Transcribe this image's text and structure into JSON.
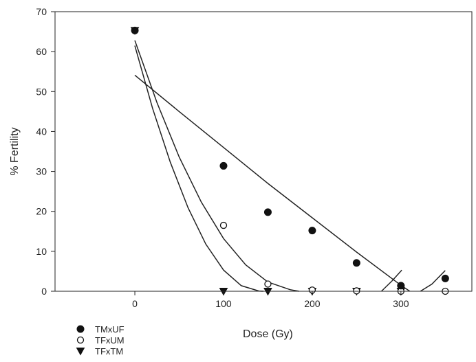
{
  "chart_data": {
    "type": "scatter",
    "title": "",
    "xlabel": "Dose (Gy)",
    "ylabel": "% Fertility",
    "xlim": [
      -90,
      380
    ],
    "ylim": [
      0,
      70
    ],
    "xticks": [
      0,
      100,
      200,
      300
    ],
    "yticks": [
      0,
      10,
      20,
      30,
      40,
      50,
      60,
      70
    ],
    "grid": false,
    "legend_position": "bottom-left (below plot)",
    "series": [
      {
        "name": "TMxUF",
        "marker": "filled-circle",
        "color": "#111111",
        "points": [
          [
            0,
            65.3
          ],
          [
            100,
            31.4
          ],
          [
            150,
            19.8
          ],
          [
            200,
            15.2
          ],
          [
            250,
            7.1
          ],
          [
            300,
            1.4
          ],
          [
            350,
            3.2
          ]
        ]
      },
      {
        "name": "TFxUM",
        "marker": "open-circle",
        "color": "#111111",
        "points": [
          [
            0,
            65.3
          ],
          [
            100,
            16.5
          ],
          [
            150,
            1.8
          ],
          [
            200,
            0.3
          ],
          [
            250,
            0.1
          ],
          [
            300,
            0.0
          ],
          [
            350,
            0.0
          ]
        ]
      },
      {
        "name": "TFxTM",
        "marker": "down-triangle",
        "color": "#111111",
        "points": [
          [
            0,
            65.3
          ],
          [
            100,
            0
          ],
          [
            150,
            0
          ],
          [
            200,
            0
          ],
          [
            250,
            0
          ],
          [
            300,
            0
          ]
        ]
      }
    ],
    "fit_curves": [
      {
        "for": "TMxUF",
        "segments": [
          [
            [
              0,
              54.1
            ],
            [
              50,
              45
            ],
            [
              100,
              36
            ],
            [
              150,
              27
            ],
            [
              200,
              18.4
            ],
            [
              250,
              9.8
            ],
            [
              300,
              1.5
            ],
            [
              310,
              0
            ]
          ],
          [
            [
              322,
              0
            ],
            [
              335,
              1.8
            ],
            [
              350,
              5.2
            ]
          ],
          [
            [
              278,
              0
            ],
            [
              290,
              2.6
            ],
            [
              301,
              5.3
            ]
          ]
        ]
      },
      {
        "for": "TFxUM",
        "segments": [
          [
            [
              0,
              62.8
            ],
            [
              25,
              47.2
            ],
            [
              50,
              33.6
            ],
            [
              75,
              22.3
            ],
            [
              100,
              13.2
            ],
            [
              125,
              6.6
            ],
            [
              150,
              2.3
            ],
            [
              175,
              0.4
            ],
            [
              185,
              0
            ]
          ]
        ]
      },
      {
        "for": "TFxTM",
        "segments": [
          [
            [
              0,
              61.5
            ],
            [
              20,
              45.8
            ],
            [
              40,
              32.3
            ],
            [
              60,
              20.9
            ],
            [
              80,
              11.8
            ],
            [
              100,
              5.3
            ],
            [
              120,
              1.4
            ],
            [
              140,
              0.05
            ],
            [
              145,
              0
            ]
          ]
        ]
      }
    ]
  }
}
